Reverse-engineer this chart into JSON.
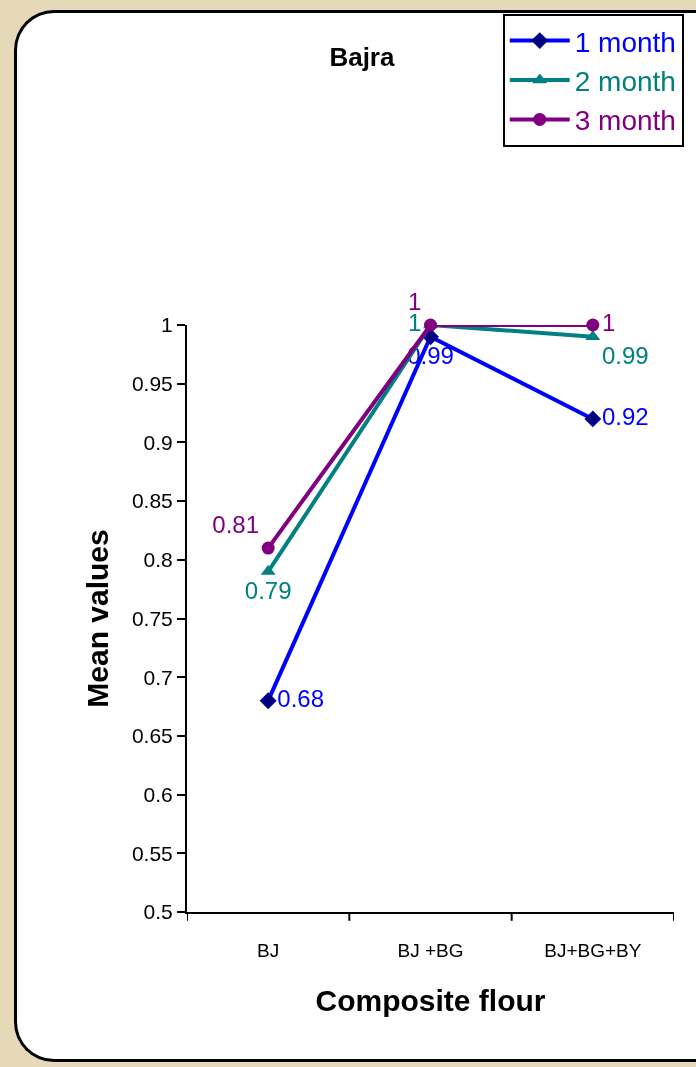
{
  "chart_data": {
    "type": "line",
    "title": "Bajra",
    "xlabel": "Composite flour",
    "ylabel": "Mean values",
    "categories": [
      "BJ",
      "BJ +BG",
      "BJ+BG+BY"
    ],
    "series": [
      {
        "name": "1 month",
        "color": "#0000ff",
        "marker": "diamond",
        "values": [
          0.68,
          0.99,
          0.92
        ]
      },
      {
        "name": "2 month",
        "color": "#008080",
        "marker": "triangle",
        "values": [
          0.79,
          1,
          0.99
        ]
      },
      {
        "name": "3 month",
        "color": "#800080",
        "marker": "circle",
        "values": [
          0.81,
          1,
          1
        ]
      }
    ],
    "ylim": [
      0.5,
      1
    ],
    "yticks": [
      0.5,
      0.55,
      0.6,
      0.65,
      0.7,
      0.75,
      0.8,
      0.85,
      0.9,
      0.95,
      1
    ],
    "data_labels": true,
    "grid": false,
    "legend": "top right",
    "line_style": "solid"
  }
}
